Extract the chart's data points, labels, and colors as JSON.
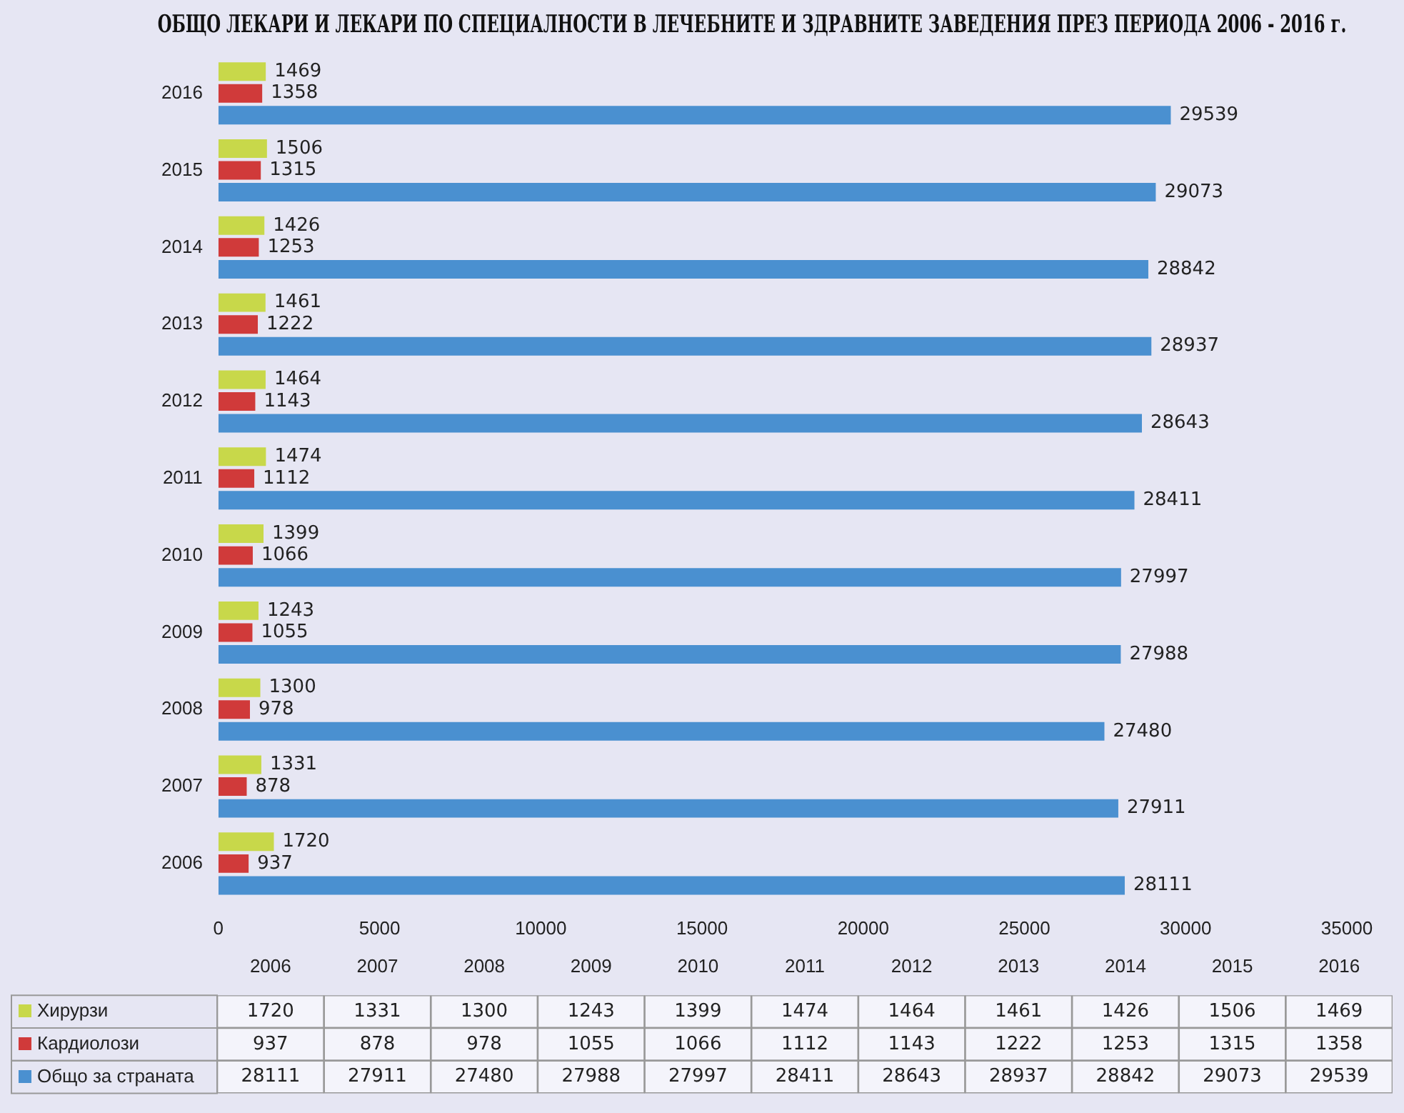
{
  "chart_data": [
    {
      "type": "bar",
      "orientation": "horizontal",
      "title": "ОБЩО ЛЕКАРИ И ЛЕКАРИ ПО СПЕЦИАЛНОСТИ В ЛЕЧЕБНИТЕ И ЗДРАВНИТЕ ЗАВЕДЕНИЯ ПРЕЗ ПЕРИОДА 2006 - 2016 г.",
      "categories": [
        "2016",
        "2015",
        "2014",
        "2013",
        "2012",
        "2011",
        "2010",
        "2009",
        "2008",
        "2007",
        "2006"
      ],
      "series": [
        {
          "color": "#c8d84a",
          "values": [
            1469,
            1506,
            1426,
            1461,
            1464,
            1474,
            1399,
            1243,
            1300,
            1331,
            1720
          ]
        },
        {
          "color": "#d03a3a",
          "values": [
            1358,
            1315,
            1253,
            1222,
            1143,
            1112,
            1066,
            1055,
            978,
            878,
            937
          ]
        },
        {
          "color": "#4a90d0",
          "values": [
            29539,
            29073,
            28842,
            28937,
            28643,
            28411,
            27997,
            27988,
            27480,
            27911,
            28111
          ]
        }
      ],
      "xlim": [
        0,
        35000
      ],
      "xticks": [
        0,
        5000,
        10000,
        15000,
        20000,
        25000,
        30000,
        35000
      ],
      "grid": false,
      "data_labels": true
    },
    {
      "type": "heatmap",
      "categories": [
        "2006",
        "2007",
        "2008",
        "2009",
        "2010",
        "2011",
        "2012",
        "2013",
        "2014",
        "2015",
        "2016"
      ],
      "y_categories": [
        "Хирурзи",
        "Кардиолози",
        "Общо за страната"
      ],
      "cells": [
        [
          1720,
          1331,
          1300,
          1243,
          1399,
          1474,
          1464,
          1461,
          1426,
          1506,
          1469
        ],
        [
          937,
          878,
          978,
          1055,
          1066,
          1112,
          1143,
          1222,
          1253,
          1315,
          1358
        ],
        [
          28111,
          27911,
          27480,
          27988,
          27997,
          28411,
          28643,
          28937,
          28842,
          29073,
          29539
        ]
      ],
      "data_labels": true
    }
  ]
}
